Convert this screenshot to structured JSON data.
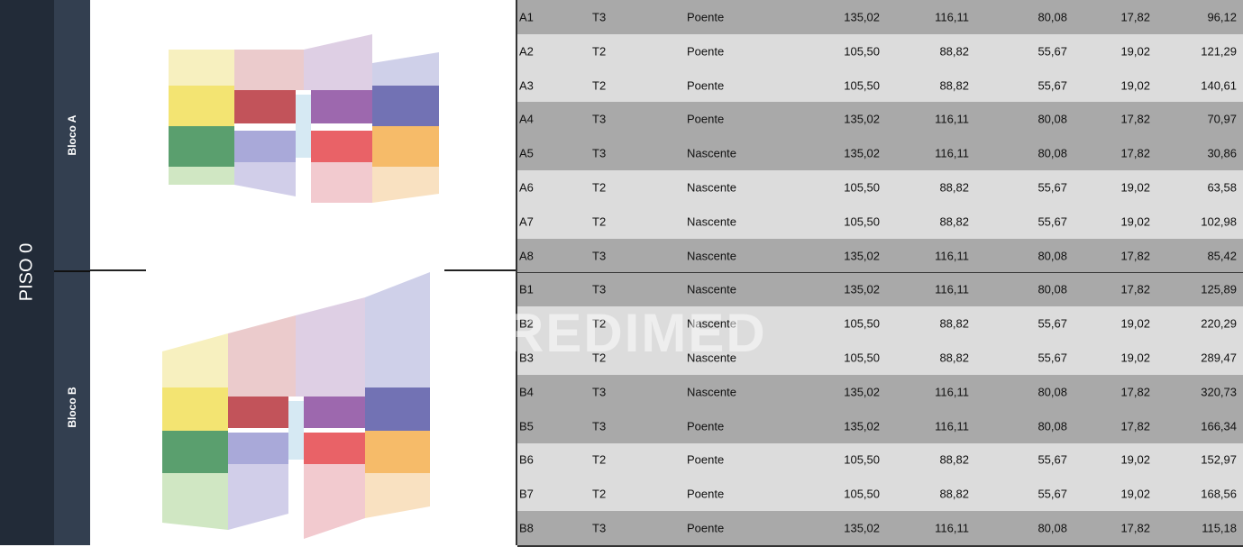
{
  "floor_label": "PISO 0",
  "blocks": [
    {
      "label": "Bloco A",
      "rows": [
        [
          "A1",
          "T3",
          "Poente",
          "135,02",
          "116,11",
          "80,08",
          "17,82",
          "96,12"
        ],
        [
          "A2",
          "T2",
          "Poente",
          "105,50",
          "88,82",
          "55,67",
          "19,02",
          "121,29"
        ],
        [
          "A3",
          "T2",
          "Poente",
          "105,50",
          "88,82",
          "55,67",
          "19,02",
          "140,61"
        ],
        [
          "A4",
          "T3",
          "Poente",
          "135,02",
          "116,11",
          "80,08",
          "17,82",
          "70,97"
        ],
        [
          "A5",
          "T3",
          "Nascente",
          "135,02",
          "116,11",
          "80,08",
          "17,82",
          "30,86"
        ],
        [
          "A6",
          "T2",
          "Nascente",
          "105,50",
          "88,82",
          "55,67",
          "19,02",
          "63,58"
        ],
        [
          "A7",
          "T2",
          "Nascente",
          "105,50",
          "88,82",
          "55,67",
          "19,02",
          "102,98"
        ],
        [
          "A8",
          "T3",
          "Nascente",
          "135,02",
          "116,11",
          "80,08",
          "17,82",
          "85,42"
        ]
      ]
    },
    {
      "label": "Bloco B",
      "rows": [
        [
          "B1",
          "T3",
          "Nascente",
          "135,02",
          "116,11",
          "80,08",
          "17,82",
          "125,89"
        ],
        [
          "B2",
          "T2",
          "Nascente",
          "105,50",
          "88,82",
          "55,67",
          "19,02",
          "220,29"
        ],
        [
          "B3",
          "T2",
          "Nascente",
          "105,50",
          "88,82",
          "55,67",
          "19,02",
          "289,47"
        ],
        [
          "B4",
          "T3",
          "Nascente",
          "135,02",
          "116,11",
          "80,08",
          "17,82",
          "320,73"
        ],
        [
          "B5",
          "T3",
          "Poente",
          "135,02",
          "116,11",
          "80,08",
          "17,82",
          "166,34"
        ],
        [
          "B6",
          "T2",
          "Poente",
          "105,50",
          "88,82",
          "55,67",
          "19,02",
          "152,97"
        ],
        [
          "B7",
          "T2",
          "Poente",
          "105,50",
          "88,82",
          "55,67",
          "19,02",
          "168,56"
        ],
        [
          "B8",
          "T3",
          "Poente",
          "135,02",
          "116,11",
          "80,08",
          "17,82",
          "115,18"
        ]
      ]
    }
  ],
  "watermark": "REDIMED"
}
